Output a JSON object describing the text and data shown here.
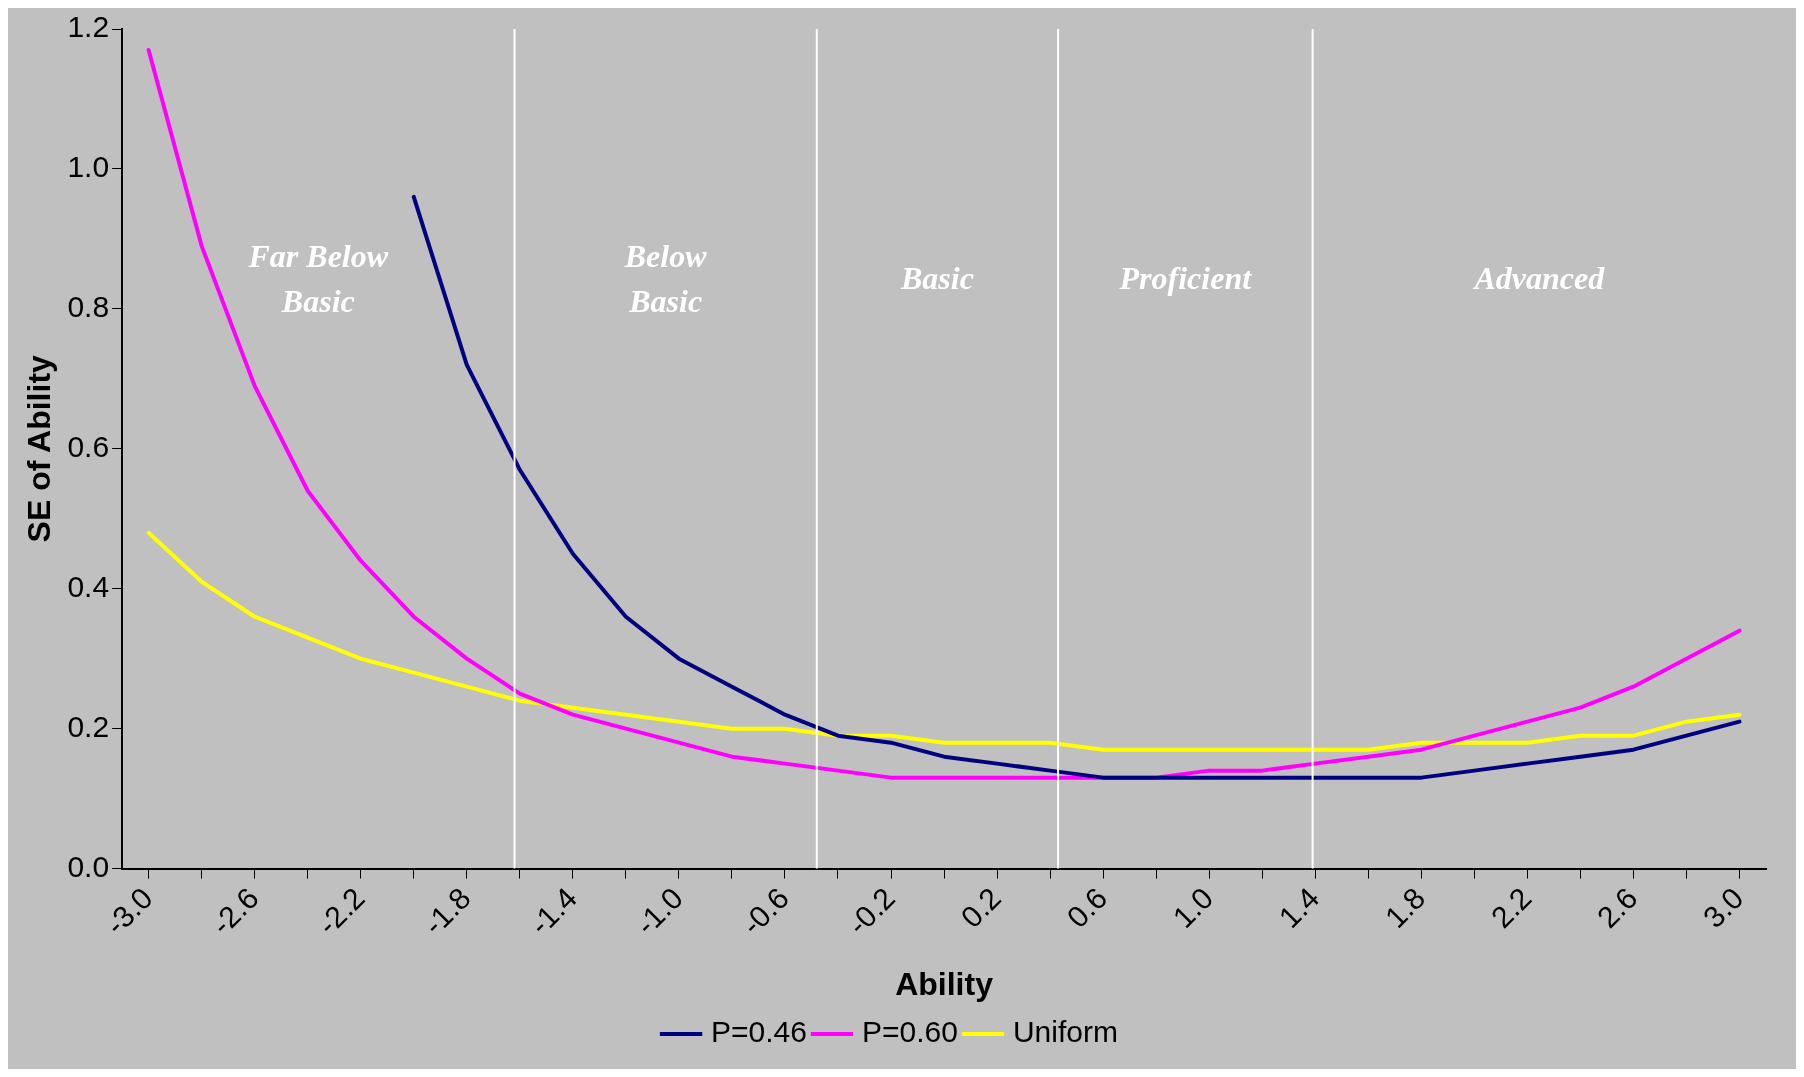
{
  "chart_data": {
    "type": "line",
    "xlabel": "Ability",
    "ylabel": "SE of Ability",
    "x": [
      -3.0,
      -2.8,
      -2.6,
      -2.4,
      -2.2,
      -2.0,
      -1.8,
      -1.6,
      -1.4,
      -1.2,
      -1.0,
      -0.8,
      -0.6,
      -0.4,
      -0.2,
      0.0,
      0.2,
      0.4,
      0.6,
      0.8,
      1.0,
      1.2,
      1.4,
      1.6,
      1.8,
      2.0,
      2.2,
      2.4,
      2.6,
      2.8,
      3.0
    ],
    "xlim": [
      -3.1,
      3.1
    ],
    "xticks": [
      {
        "value": -3.0,
        "label": "-3.0"
      },
      {
        "value": -2.8,
        "label": null
      },
      {
        "value": -2.6,
        "label": "-2.6"
      },
      {
        "value": -2.4,
        "label": null
      },
      {
        "value": -2.2,
        "label": "-2.2"
      },
      {
        "value": -2.0,
        "label": null
      },
      {
        "value": -1.8,
        "label": "-1.8"
      },
      {
        "value": -1.6,
        "label": null
      },
      {
        "value": -1.4,
        "label": "-1.4"
      },
      {
        "value": -1.2,
        "label": null
      },
      {
        "value": -1.0,
        "label": "-1.0"
      },
      {
        "value": -0.8,
        "label": null
      },
      {
        "value": -0.6,
        "label": "-0.6"
      },
      {
        "value": -0.4,
        "label": null
      },
      {
        "value": -0.2,
        "label": "-0.2"
      },
      {
        "value": 0.0,
        "label": null
      },
      {
        "value": 0.2,
        "label": "0.2"
      },
      {
        "value": 0.4,
        "label": null
      },
      {
        "value": 0.6,
        "label": "0.6"
      },
      {
        "value": 0.8,
        "label": null
      },
      {
        "value": 1.0,
        "label": "1.0"
      },
      {
        "value": 1.2,
        "label": null
      },
      {
        "value": 1.4,
        "label": "1.4"
      },
      {
        "value": 1.6,
        "label": null
      },
      {
        "value": 1.8,
        "label": "1.8"
      },
      {
        "value": 2.0,
        "label": null
      },
      {
        "value": 2.2,
        "label": "2.2"
      },
      {
        "value": 2.4,
        "label": null
      },
      {
        "value": 2.6,
        "label": "2.6"
      },
      {
        "value": 2.8,
        "label": null
      },
      {
        "value": 3.0,
        "label": "3.0"
      }
    ],
    "ylim": [
      0,
      1.2
    ],
    "yticks": [
      {
        "value": 0,
        "label": "0.0"
      },
      {
        "value": 0.2,
        "label": "0.2"
      },
      {
        "value": 0.4,
        "label": "0.4"
      },
      {
        "value": 0.6,
        "label": "0.6"
      },
      {
        "value": 0.8,
        "label": "0.8"
      },
      {
        "value": 1.0,
        "label": "1.0"
      },
      {
        "value": 1.2,
        "label": "1.2"
      }
    ],
    "grid": false,
    "legend": "bottom",
    "marker": "none",
    "line_style": "solid",
    "series": [
      {
        "name": "P=0.46",
        "color": "#000080",
        "values": [
          null,
          null,
          null,
          null,
          null,
          0.96,
          0.72,
          0.57,
          0.45,
          0.36,
          0.3,
          0.26,
          0.22,
          0.19,
          0.18,
          0.16,
          0.15,
          0.14,
          0.13,
          0.13,
          0.13,
          0.13,
          0.13,
          0.13,
          0.13,
          0.14,
          0.15,
          0.16,
          0.17,
          0.19,
          0.21
        ]
      },
      {
        "name": "P=0.60",
        "color": "#ff00ff",
        "values": [
          1.17,
          0.89,
          0.69,
          0.54,
          0.44,
          0.36,
          0.3,
          0.25,
          0.22,
          0.2,
          0.18,
          0.16,
          0.15,
          0.14,
          0.13,
          0.13,
          0.13,
          0.13,
          0.13,
          0.13,
          0.14,
          0.14,
          0.15,
          0.16,
          0.17,
          0.19,
          0.21,
          0.23,
          0.26,
          0.3,
          0.34
        ]
      },
      {
        "name": "Uniform",
        "color": "#ffff00",
        "values": [
          0.48,
          0.41,
          0.36,
          0.33,
          0.3,
          0.28,
          0.26,
          0.24,
          0.23,
          0.22,
          0.21,
          0.2,
          0.2,
          0.19,
          0.19,
          0.18,
          0.18,
          0.18,
          0.17,
          0.17,
          0.17,
          0.17,
          0.17,
          0.17,
          0.18,
          0.18,
          0.18,
          0.19,
          0.19,
          0.21,
          0.22
        ]
      }
    ],
    "ref_lines": [
      {
        "axis": "x",
        "value": -1.62,
        "color": "#ffffff"
      },
      {
        "axis": "x",
        "value": -0.48,
        "color": "#ffffff"
      },
      {
        "axis": "x",
        "value": 0.43,
        "color": "#ffffff"
      },
      {
        "axis": "x",
        "value": 1.39,
        "color": "#ffffff"
      }
    ],
    "annotations": [
      "Far Below Basic",
      "Below Basic",
      "Basic",
      "Proficient",
      "Advanced"
    ]
  }
}
